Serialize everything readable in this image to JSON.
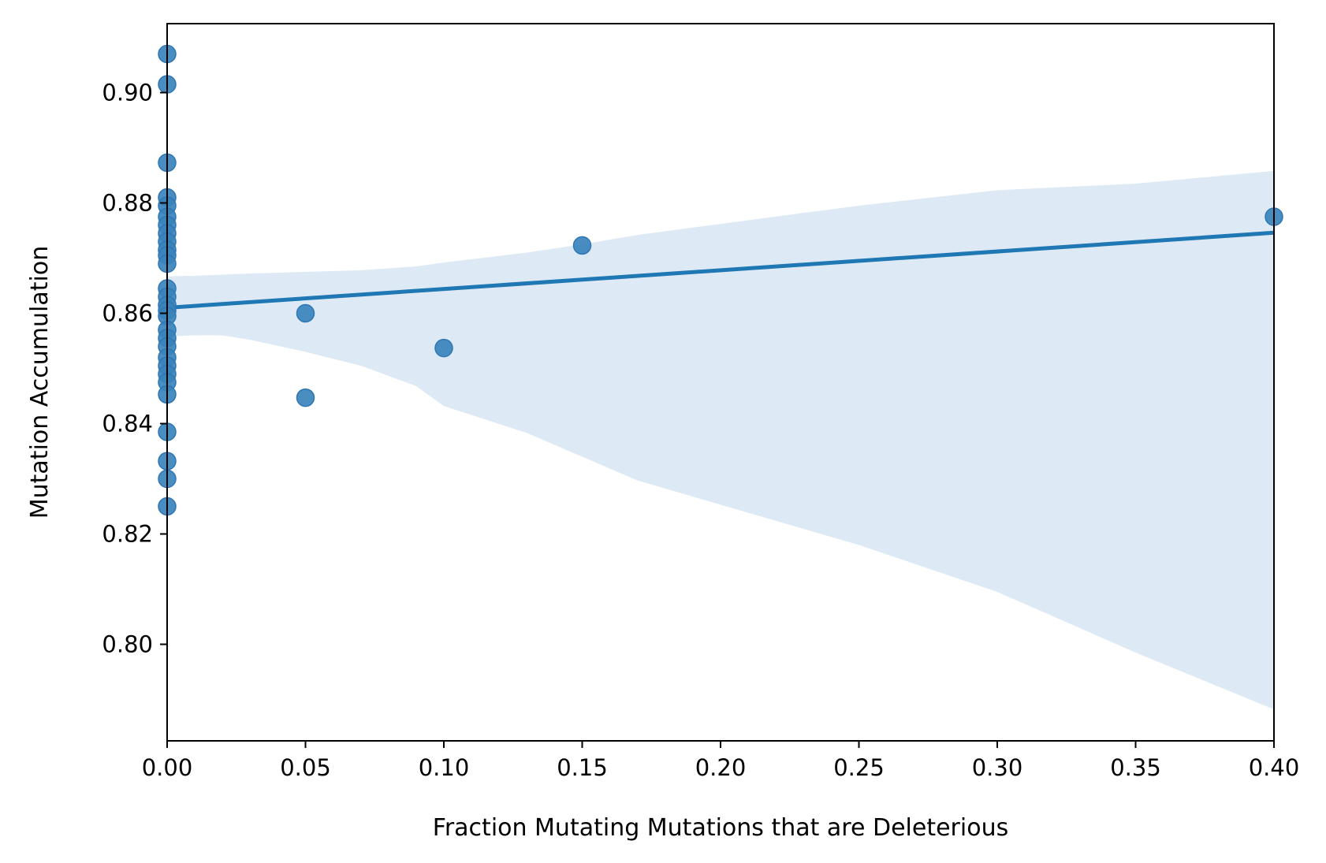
{
  "chart_data": {
    "type": "scatter",
    "title": "",
    "xlabel": "Fraction Mutating Mutations that are Deleterious",
    "ylabel": "Mutation Accumulation",
    "xlim": [
      0.0,
      0.4
    ],
    "ylim": [
      0.7825,
      0.9125
    ],
    "xticks": [
      0.0,
      0.05,
      0.1,
      0.15,
      0.2,
      0.25,
      0.3,
      0.35,
      0.4
    ],
    "xtick_labels": [
      "0.00",
      "0.05",
      "0.10",
      "0.15",
      "0.20",
      "0.25",
      "0.30",
      "0.35",
      "0.40"
    ],
    "yticks": [
      0.8,
      0.82,
      0.84,
      0.86,
      0.88,
      0.9
    ],
    "ytick_labels": [
      "0.80",
      "0.82",
      "0.84",
      "0.86",
      "0.88",
      "0.90"
    ],
    "grid": false,
    "legend": "none",
    "colors": {
      "points": "#3a83bc",
      "points_edge": "#2f77b4",
      "fit_line": "#1f77b4",
      "confidence_band": "#dde9f4",
      "axes": "#000000"
    },
    "series": [
      {
        "points": [
          {
            "x": 0.0,
            "y": 0.907
          },
          {
            "x": 0.0,
            "y": 0.9015
          },
          {
            "x": 0.0,
            "y": 0.8873
          },
          {
            "x": 0.0,
            "y": 0.881
          },
          {
            "x": 0.0,
            "y": 0.8795
          },
          {
            "x": 0.0,
            "y": 0.8775
          },
          {
            "x": 0.0,
            "y": 0.876
          },
          {
            "x": 0.0,
            "y": 0.8745
          },
          {
            "x": 0.0,
            "y": 0.873
          },
          {
            "x": 0.0,
            "y": 0.8715
          },
          {
            "x": 0.0,
            "y": 0.8705
          },
          {
            "x": 0.0,
            "y": 0.869
          },
          {
            "x": 0.0,
            "y": 0.8645
          },
          {
            "x": 0.0,
            "y": 0.863
          },
          {
            "x": 0.0,
            "y": 0.8615
          },
          {
            "x": 0.0,
            "y": 0.8605
          },
          {
            "x": 0.0,
            "y": 0.8595
          },
          {
            "x": 0.0,
            "y": 0.857
          },
          {
            "x": 0.0,
            "y": 0.8555
          },
          {
            "x": 0.0,
            "y": 0.854
          },
          {
            "x": 0.0,
            "y": 0.852
          },
          {
            "x": 0.0,
            "y": 0.8505
          },
          {
            "x": 0.0,
            "y": 0.849
          },
          {
            "x": 0.0,
            "y": 0.8475
          },
          {
            "x": 0.0,
            "y": 0.8453
          },
          {
            "x": 0.0,
            "y": 0.8385
          },
          {
            "x": 0.0,
            "y": 0.8332
          },
          {
            "x": 0.0,
            "y": 0.83
          },
          {
            "x": 0.0,
            "y": 0.825
          },
          {
            "x": 0.05,
            "y": 0.86
          },
          {
            "x": 0.05,
            "y": 0.8447
          },
          {
            "x": 0.1,
            "y": 0.8537
          },
          {
            "x": 0.15,
            "y": 0.8723
          },
          {
            "x": 0.4,
            "y": 0.8775
          }
        ]
      }
    ],
    "regression": {
      "x": [
        0.0,
        0.4
      ],
      "y": [
        0.861,
        0.8746
      ]
    },
    "confidence_band": {
      "x": [
        0.0,
        0.01,
        0.02,
        0.03,
        0.05,
        0.07,
        0.09,
        0.1,
        0.13,
        0.15,
        0.17,
        0.2,
        0.25,
        0.3,
        0.35,
        0.4
      ],
      "upper": [
        0.8667,
        0.8668,
        0.867,
        0.8672,
        0.8675,
        0.8678,
        0.8685,
        0.8692,
        0.871,
        0.8725,
        0.8742,
        0.8762,
        0.8795,
        0.8823,
        0.8835,
        0.8858
      ],
      "lower": [
        0.8558,
        0.856,
        0.856,
        0.8552,
        0.853,
        0.8505,
        0.8468,
        0.8432,
        0.8383,
        0.834,
        0.8297,
        0.8253,
        0.818,
        0.8095,
        0.7985,
        0.7882
      ]
    }
  }
}
